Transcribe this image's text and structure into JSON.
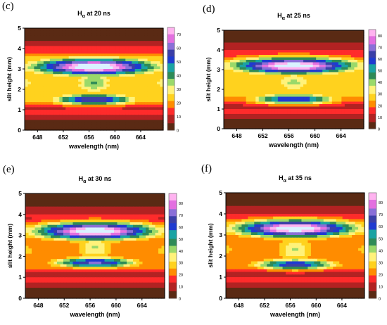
{
  "chart_data": [
    {
      "panel_label": "(c)",
      "type": "heatmap",
      "title_main": "H",
      "title_sub": "α",
      "title_suffix": " at 20 ns",
      "xlabel": "wavelength (nm)",
      "ylabel": "slit height (mm)",
      "xlim": [
        646,
        667.5
      ],
      "ylim": [
        0,
        5
      ],
      "xticks": [
        648,
        652,
        656,
        660,
        664
      ],
      "yticks": [
        0,
        1,
        2,
        3,
        4,
        5
      ],
      "colorbar_ticks": [
        0,
        10,
        20,
        30,
        40,
        50,
        60,
        70
      ],
      "colorbar_max": 75,
      "grid": false,
      "intensity_features": {
        "upper_band": {
          "center_y": 3.1,
          "peak": 72
        },
        "lower_band": {
          "center_y": 1.5,
          "peak": 52
        },
        "wing_level": 25,
        "neck_y": 2.35
      }
    },
    {
      "panel_label": "(d)",
      "type": "heatmap",
      "title_main": "H",
      "title_sub": "α",
      "title_suffix": " at 25 ns",
      "xlabel": "wavelength (nm)",
      "ylabel": "slit height (mm)",
      "xlim": [
        646,
        667.5
      ],
      "ylim": [
        0,
        5
      ],
      "xticks": [
        648,
        652,
        656,
        660,
        664
      ],
      "yticks": [
        0,
        1,
        2,
        3,
        4,
        5
      ],
      "colorbar_ticks": [
        0,
        10,
        20,
        30,
        40,
        50,
        60,
        70,
        80
      ],
      "colorbar_max": 85,
      "grid": false,
      "intensity_features": {
        "upper_band": {
          "center_y": 3.2,
          "peak": 82
        },
        "lower_band": {
          "center_y": 1.5,
          "peak": 55
        },
        "wing_level": 25,
        "neck_y": 2.35
      }
    },
    {
      "panel_label": "(e)",
      "type": "heatmap",
      "title_main": "H",
      "title_sub": "α",
      "title_suffix": " at 30 ns",
      "xlabel": "wavelength (nm)",
      "ylabel": "slit height (mm)",
      "xlim": [
        646,
        667.5
      ],
      "ylim": [
        0,
        5
      ],
      "xticks": [
        648,
        652,
        656,
        660,
        664
      ],
      "yticks": [
        0,
        1,
        2,
        3,
        4,
        5
      ],
      "colorbar_ticks": [
        0,
        10,
        20,
        30,
        40,
        50,
        60,
        70,
        80
      ],
      "colorbar_max": 88,
      "grid": false,
      "intensity_features": {
        "upper_band": {
          "center_y": 3.2,
          "peak": 86
        },
        "lower_band": {
          "center_y": 1.7,
          "peak": 62
        },
        "wing_level": 24,
        "neck_y": 2.4
      }
    },
    {
      "panel_label": "(f)",
      "type": "heatmap",
      "title_main": "H",
      "title_sub": "α",
      "title_suffix": " at 35 ns",
      "xlabel": "wavelength (nm)",
      "ylabel": "slit height (mm)",
      "xlim": [
        646,
        667.5
      ],
      "ylim": [
        0,
        5
      ],
      "xticks": [
        648,
        652,
        656,
        660,
        664
      ],
      "yticks": [
        0,
        1,
        2,
        3,
        4,
        5
      ],
      "colorbar_ticks": [
        0,
        10,
        20,
        30,
        40,
        50,
        60,
        70,
        80
      ],
      "colorbar_max": 88,
      "grid": false,
      "intensity_features": {
        "upper_band": {
          "center_y": 3.3,
          "peak": 86
        },
        "lower_band": {
          "center_y": 1.6,
          "peak": 58
        },
        "wing_level": 23,
        "neck_y": 2.3
      }
    }
  ],
  "colormap": [
    "#5a2a14",
    "#b22222",
    "#ff2b2b",
    "#ff8c00",
    "#ffd21e",
    "#fff27a",
    "#9ad96a",
    "#2e8b57",
    "#1aa3a3",
    "#1f3bd1",
    "#3b3fa8",
    "#8a6fd8",
    "#e36fe0",
    "#ffb3f0",
    "#d9f2ff"
  ]
}
